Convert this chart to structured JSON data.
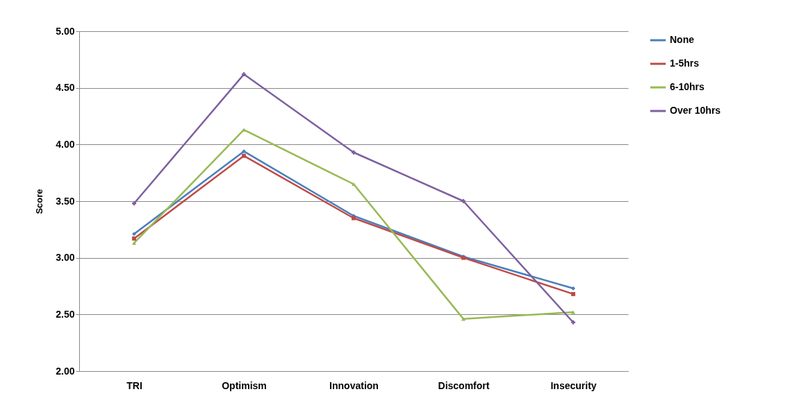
{
  "chart_data": {
    "type": "line",
    "ylabel": "Score",
    "categories": [
      "TRI",
      "Optimism",
      "Innovation",
      "Discomfort",
      "Insecurity"
    ],
    "series": [
      {
        "name": "None",
        "color": "#4a7ebb",
        "marker": "diamond",
        "values": [
          3.21,
          3.94,
          3.37,
          3.01,
          2.73
        ]
      },
      {
        "name": "1-5hrs",
        "color": "#be4b48",
        "marker": "square",
        "values": [
          3.17,
          3.9,
          3.35,
          3.0,
          2.68
        ]
      },
      {
        "name": "6-10hrs",
        "color": "#98b954",
        "marker": "triangle",
        "values": [
          3.13,
          4.13,
          3.65,
          2.46,
          2.52
        ]
      },
      {
        "name": "Over 10hrs",
        "color": "#7d60a0",
        "marker": "cross",
        "values": [
          3.48,
          4.62,
          3.93,
          3.5,
          2.43
        ]
      }
    ],
    "ylim": [
      2,
      5
    ],
    "yticks": [
      {
        "value": 2,
        "label": "2.00"
      },
      {
        "value": 2.5,
        "label": "2.50"
      },
      {
        "value": 3,
        "label": "3.00"
      },
      {
        "value": 3.5,
        "label": "3.50"
      },
      {
        "value": 4,
        "label": "4.00"
      },
      {
        "value": 4.5,
        "label": "4.50"
      },
      {
        "value": 5,
        "label": "5.00"
      }
    ],
    "grid": "y",
    "legend": "right"
  }
}
